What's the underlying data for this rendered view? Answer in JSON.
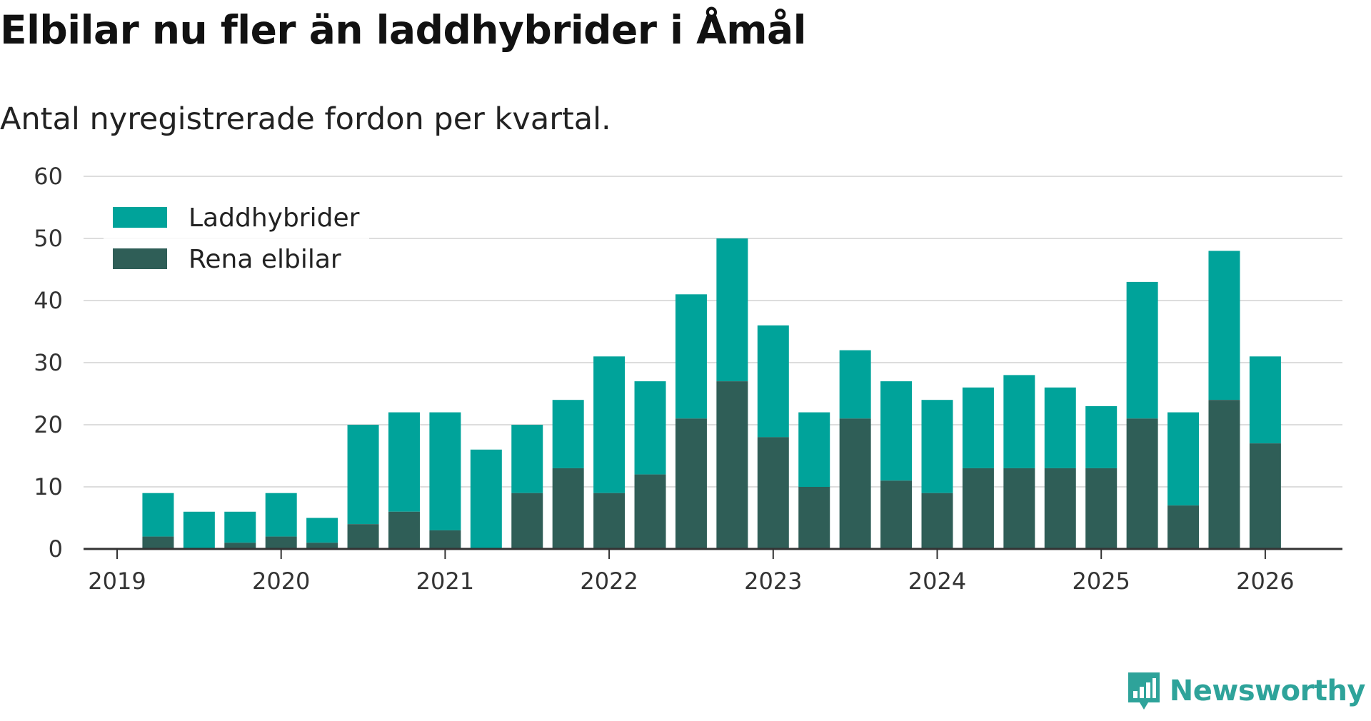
{
  "title": "Elbilar nu fler än laddhybrider i Åmål",
  "subtitle": "Antal nyregistrerade fordon per kvartal.",
  "brand": "Newsworthy",
  "colors": {
    "laddhybrider": "#00a39a",
    "elbilar": "#2f5e57",
    "grid": "#dddddd",
    "axis": "#333333",
    "brand": "#2ea39a"
  },
  "chart_data": {
    "type": "bar",
    "stacked": true,
    "categories": [
      "2019-Q2",
      "2019-Q3",
      "2019-Q4",
      "2020-Q1",
      "2020-Q2",
      "2020-Q3",
      "2020-Q4",
      "2021-Q1",
      "2021-Q2",
      "2021-Q3",
      "2021-Q4",
      "2022-Q1",
      "2022-Q2",
      "2022-Q3",
      "2022-Q4",
      "2023-Q1",
      "2023-Q2",
      "2023-Q3",
      "2023-Q4",
      "2024-Q1",
      "2024-Q2",
      "2024-Q3",
      "2024-Q4",
      "2025-Q1",
      "2025-Q2",
      "2025-Q3",
      "2025-Q4",
      "2026-Q1"
    ],
    "series": [
      {
        "name": "Rena elbilar",
        "values": [
          2,
          0,
          1,
          2,
          1,
          4,
          6,
          3,
          0,
          9,
          13,
          9,
          12,
          21,
          27,
          18,
          10,
          21,
          11,
          9,
          13,
          13,
          13,
          13,
          21,
          7,
          24,
          17
        ]
      },
      {
        "name": "Laddhybrider",
        "values": [
          7,
          6,
          5,
          7,
          4,
          16,
          16,
          19,
          16,
          11,
          11,
          22,
          15,
          20,
          23,
          18,
          12,
          11,
          16,
          15,
          13,
          15,
          13,
          10,
          22,
          15,
          24,
          14
        ]
      }
    ],
    "x_ticks": [
      "2019",
      "2020",
      "2021",
      "2022",
      "2023",
      "2024",
      "2025",
      "2026"
    ],
    "y_ticks": [
      0,
      10,
      20,
      30,
      40,
      50,
      60
    ],
    "ylim": [
      0,
      60
    ],
    "grid": true,
    "legend": {
      "position": "top-left",
      "items": [
        "Laddhybrider",
        "Rena elbilar"
      ]
    }
  }
}
